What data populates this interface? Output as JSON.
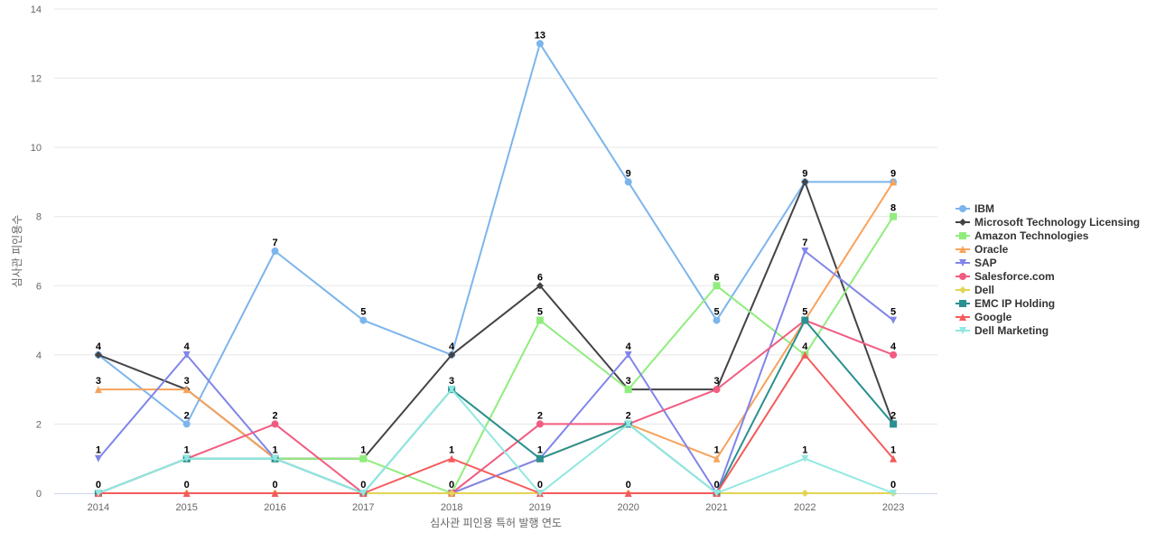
{
  "chart_data": {
    "type": "line",
    "title": "",
    "xlabel": "심사관 피인용 특허 발행 연도",
    "ylabel": "심사관 피인용수",
    "x": [
      "2014",
      "2015",
      "2016",
      "2017",
      "2018",
      "2019",
      "2020",
      "2021",
      "2022",
      "2023"
    ],
    "ylim": [
      0,
      14
    ],
    "yticks": [
      0,
      2,
      4,
      6,
      8,
      10,
      12,
      14
    ],
    "grid": "horizontal",
    "legend_position": "right",
    "series": [
      {
        "name": "IBM",
        "color": "#7cb5ec",
        "marker": "circle",
        "values": [
          4,
          2,
          7,
          5,
          4,
          13,
          9,
          5,
          9,
          9
        ]
      },
      {
        "name": "Microsoft Technology Licensing",
        "color": "#434348",
        "marker": "diamond",
        "values": [
          4,
          3,
          1,
          1,
          4,
          6,
          3,
          3,
          9,
          2
        ]
      },
      {
        "name": "Amazon Technologies",
        "color": "#90ed7d",
        "marker": "square",
        "values": [
          0,
          1,
          1,
          1,
          0,
          5,
          3,
          6,
          4,
          8
        ]
      },
      {
        "name": "Oracle",
        "color": "#f7a35c",
        "marker": "triangle",
        "values": [
          3,
          3,
          1,
          0,
          0,
          1,
          2,
          1,
          5,
          9
        ]
      },
      {
        "name": "SAP",
        "color": "#8085e9",
        "marker": "triangle-down",
        "values": [
          1,
          4,
          1,
          0,
          0,
          1,
          4,
          0,
          7,
          5
        ]
      },
      {
        "name": "Salesforce.com",
        "color": "#f15c80",
        "marker": "circle",
        "values": [
          0,
          1,
          2,
          0,
          0,
          2,
          2,
          3,
          5,
          4
        ]
      },
      {
        "name": "Dell",
        "color": "#e4d354",
        "marker": "diamond",
        "values": [
          0,
          0,
          0,
          0,
          0,
          0,
          0,
          0,
          0,
          0
        ]
      },
      {
        "name": "EMC IP Holding",
        "color": "#2b908f",
        "marker": "square",
        "values": [
          0,
          1,
          1,
          0,
          3,
          1,
          2,
          0,
          5,
          2
        ]
      },
      {
        "name": "Google",
        "color": "#f45b5b",
        "marker": "triangle",
        "values": [
          0,
          0,
          0,
          0,
          1,
          0,
          0,
          0,
          4,
          1
        ]
      },
      {
        "name": "Dell Marketing",
        "color": "#91e8e1",
        "marker": "triangle-down",
        "values": [
          0,
          1,
          1,
          0,
          3,
          0,
          2,
          0,
          1,
          0
        ]
      }
    ],
    "data_labels": [
      {
        "x": "2014",
        "values": [
          "4",
          "3",
          "1",
          "0"
        ]
      },
      {
        "x": "2015",
        "values": [
          "4",
          "3",
          "2",
          "1",
          "0"
        ]
      },
      {
        "x": "2016",
        "values": [
          "7",
          "2",
          "1",
          "0"
        ]
      },
      {
        "x": "2017",
        "values": [
          "5",
          "1",
          "0"
        ]
      },
      {
        "x": "2018",
        "values": [
          "4",
          "3",
          "1",
          "0"
        ]
      },
      {
        "x": "2019",
        "values": [
          "13",
          "6",
          "5",
          "2",
          "1",
          "0"
        ]
      },
      {
        "x": "2020",
        "values": [
          "9",
          "4",
          "3",
          "2",
          "0"
        ]
      },
      {
        "x": "2021",
        "values": [
          "6",
          "5",
          "3",
          "1",
          "0"
        ]
      },
      {
        "x": "2022",
        "values": [
          "9",
          "7",
          "5",
          "4",
          "1"
        ]
      },
      {
        "x": "2023",
        "values": [
          "9",
          "8",
          "5",
          "4",
          "2",
          "1",
          "0"
        ]
      }
    ]
  }
}
